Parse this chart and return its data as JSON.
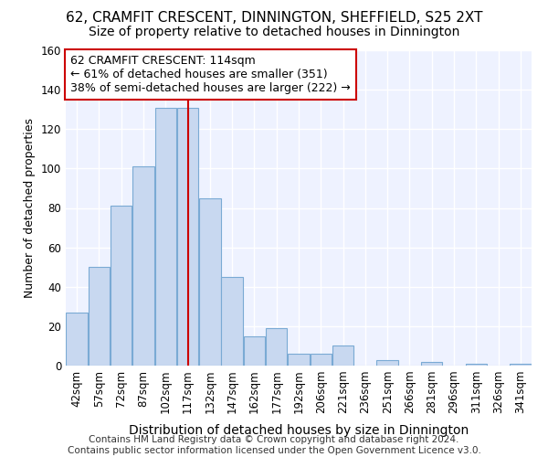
{
  "title": "62, CRAMFIT CRESCENT, DINNINGTON, SHEFFIELD, S25 2XT",
  "subtitle": "Size of property relative to detached houses in Dinnington",
  "xlabel": "Distribution of detached houses by size in Dinnington",
  "ylabel": "Number of detached properties",
  "categories": [
    "42sqm",
    "57sqm",
    "72sqm",
    "87sqm",
    "102sqm",
    "117sqm",
    "132sqm",
    "147sqm",
    "162sqm",
    "177sqm",
    "192sqm",
    "206sqm",
    "221sqm",
    "236sqm",
    "251sqm",
    "266sqm",
    "281sqm",
    "296sqm",
    "311sqm",
    "326sqm",
    "341sqm"
  ],
  "values": [
    27,
    50,
    81,
    101,
    131,
    131,
    85,
    45,
    15,
    19,
    6,
    6,
    10,
    0,
    3,
    0,
    2,
    0,
    1,
    0,
    1
  ],
  "bar_color": "#c8d8f0",
  "bar_edgecolor": "#7aaad4",
  "annotation_line1": "62 CRAMFIT CRESCENT: 114sqm",
  "annotation_line2": "← 61% of detached houses are smaller (351)",
  "annotation_line3": "38% of semi-detached houses are larger (222) →",
  "annotation_box_facecolor": "#ffffff",
  "annotation_box_edgecolor": "#cc0000",
  "vline_color": "#cc0000",
  "vline_x_index": 5,
  "ylim": [
    0,
    160
  ],
  "yticks": [
    0,
    20,
    40,
    60,
    80,
    100,
    120,
    140,
    160
  ],
  "footer1": "Contains HM Land Registry data © Crown copyright and database right 2024.",
  "footer2": "Contains public sector information licensed under the Open Government Licence v3.0.",
  "background_color": "#ffffff",
  "plot_bg_color": "#eef2ff",
  "grid_color": "#ffffff",
  "title_fontsize": 11,
  "subtitle_fontsize": 10,
  "xlabel_fontsize": 10,
  "ylabel_fontsize": 9,
  "tick_fontsize": 8.5,
  "annotation_fontsize": 9,
  "footer_fontsize": 7.5
}
